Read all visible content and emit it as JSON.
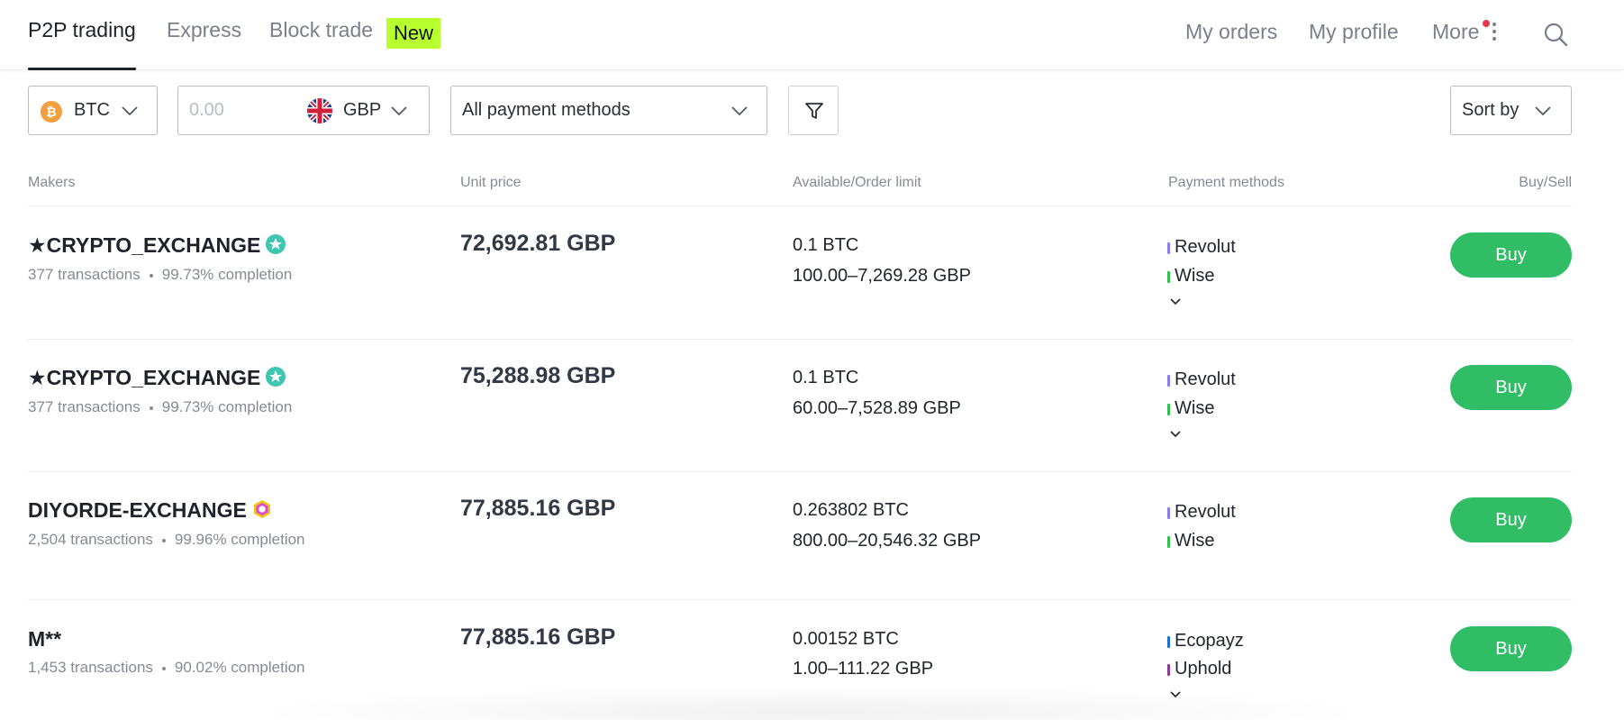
{
  "nav": {
    "tabs": [
      {
        "label": "P2P trading"
      },
      {
        "label": "Express"
      },
      {
        "label": "Block trade"
      }
    ],
    "new_badge": "New",
    "links": [
      "My orders",
      "My profile",
      "More"
    ]
  },
  "filters": {
    "crypto": "BTC",
    "amount_placeholder": "0.00",
    "currency": "GBP",
    "payment": "All payment methods",
    "sort": "Sort by"
  },
  "table": {
    "headers": {
      "makers": "Makers",
      "unit_price": "Unit price",
      "available": "Available/Order limit",
      "payment": "Payment methods",
      "action": "Buy/Sell"
    },
    "rows": [
      {
        "maker": "★CRYPTO_EXCHANGE",
        "transactions": "377 transactions",
        "completion": "99.73% completion",
        "price": "72,692.81 GBP",
        "available": "0.1 BTC",
        "limit": "100.00–7,269.28 GBP",
        "methods": [
          "Revolut",
          "Wise"
        ],
        "button": "Buy"
      },
      {
        "maker": "★CRYPTO_EXCHANGE",
        "transactions": "377 transactions",
        "completion": "99.73% completion",
        "price": "75,288.98 GBP",
        "available": "0.1 BTC",
        "limit": "60.00–7,528.89 GBP",
        "methods": [
          "Revolut",
          "Wise"
        ],
        "button": "Buy"
      },
      {
        "maker": "DIYORDE-EXCHANGE",
        "transactions": "2,504 transactions",
        "completion": "99.96% completion",
        "price": "77,885.16 GBP",
        "available": "0.263802 BTC",
        "limit": "800.00–20,546.32 GBP",
        "methods": [
          "Revolut",
          "Wise"
        ],
        "button": "Buy"
      },
      {
        "maker": "M**",
        "transactions": "1,453 transactions",
        "completion": "90.02% completion",
        "price": "77,885.16 GBP",
        "available": "0.00152 BTC",
        "limit": "1.00–111.22 GBP",
        "methods": [
          "Ecopayz",
          "Uphold"
        ],
        "button": "Buy"
      }
    ]
  },
  "colors": {
    "buy": "#31bd65",
    "new_badge": "#b7ff2e",
    "revolut": "#8a7cf0",
    "wise": "#2ec24a",
    "ecopayz": "#1a6fd6",
    "uphold": "#8a3a8f"
  }
}
